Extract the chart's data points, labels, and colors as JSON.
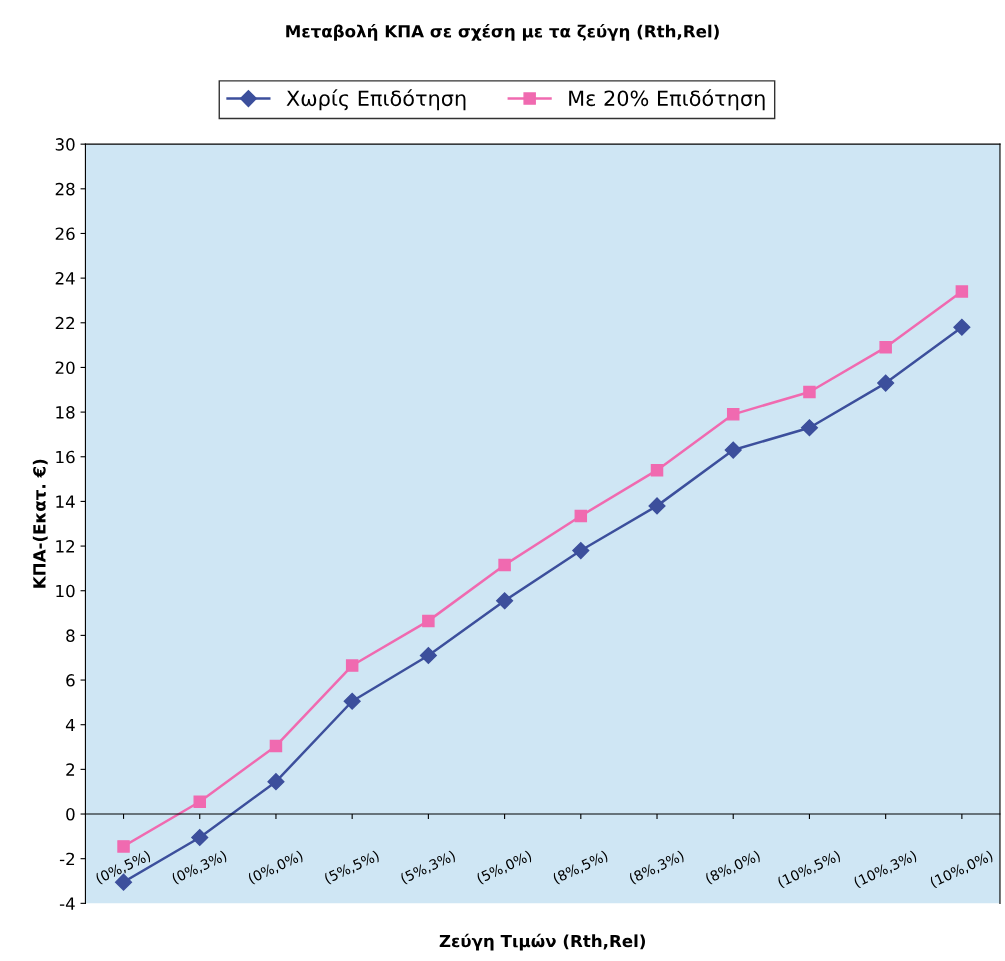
{
  "chart_data": {
    "type": "line",
    "title": "Μεταβολή ΚΠΑ σε σχέση με τα ζεύγη (Rth,Rel)",
    "xlabel": "Ζεύγη Τιμών (Rth,Rel)",
    "ylabel": "ΚΠΑ-(Εκατ. €)",
    "categories": [
      "(0%,5%)",
      "(0%,3%)",
      "(0%,0%)",
      "(5%,5%)",
      "(5%,3%)",
      "(5%,0%)",
      "(8%,5%)",
      "(8%,3%)",
      "(8%,0%)",
      "(10%,5%)",
      "(10%,3%)",
      "(10%,0%)"
    ],
    "series": [
      {
        "name": "Χωρίς Επιδότηση",
        "color": "#3c4f9c",
        "marker": "diamond",
        "values": [
          -3.05,
          -1.05,
          1.45,
          5.05,
          7.1,
          9.55,
          11.8,
          13.8,
          16.3,
          17.3,
          19.3,
          21.8
        ]
      },
      {
        "name": "Με 20% Επιδότηση",
        "color": "#f06ab0",
        "marker": "square",
        "values": [
          -1.45,
          0.55,
          3.05,
          6.65,
          8.65,
          11.15,
          13.35,
          15.4,
          17.9,
          18.9,
          20.9,
          23.4
        ]
      }
    ],
    "ylim": [
      -4,
      30
    ],
    "yticks": [
      -4,
      -2,
      0,
      2,
      4,
      6,
      8,
      10,
      12,
      14,
      16,
      18,
      20,
      22,
      24,
      26,
      28,
      30
    ],
    "legend": "top"
  }
}
